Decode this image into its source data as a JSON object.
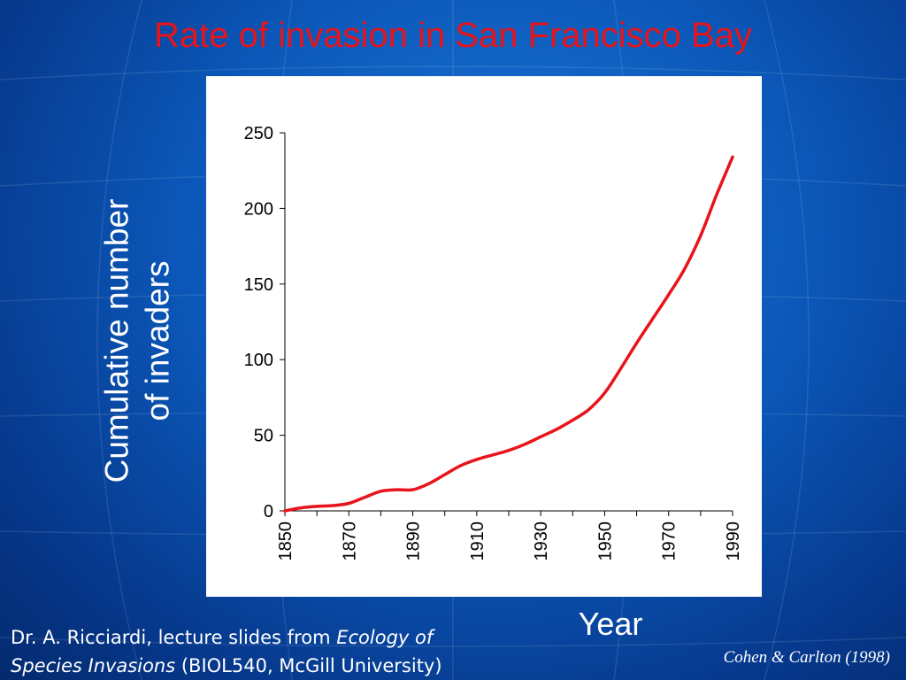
{
  "slide": {
    "title": "Rate of invasion in San Francisco Bay",
    "ylabel_line1": "Cumulative number",
    "ylabel_line2": "of invaders",
    "xlabel": "Year",
    "footer": {
      "part1": "Dr. A. Ricciardi, lecture slides from ",
      "part2_italic": "Ecology of",
      "part3_italic": "Species Invasions",
      "part4": " (BIOL540, McGill University)"
    },
    "citation": "Cohen & Carlton (1998)"
  },
  "colors": {
    "title": "#e8141b",
    "line": "#e8141b",
    "background": "#0b57b8"
  },
  "chart_data": {
    "type": "line",
    "title": "Rate of invasion in San Francisco Bay",
    "xlabel": "Year",
    "ylabel": "Cumulative number of invaders",
    "x_ticks": [
      "1850",
      "1870",
      "1890",
      "1910",
      "1930",
      "1950",
      "1970",
      "1990"
    ],
    "y_ticks": [
      "0",
      "50",
      "100",
      "150",
      "200",
      "250"
    ],
    "xlim": [
      1850,
      1990
    ],
    "ylim": [
      0,
      250
    ],
    "grid": false,
    "series": [
      {
        "x": [
          1850,
          1855,
          1860,
          1865,
          1870,
          1875,
          1880,
          1885,
          1890,
          1895,
          1900,
          1905,
          1910,
          1915,
          1920,
          1925,
          1930,
          1935,
          1940,
          1945,
          1950,
          1955,
          1960,
          1965,
          1970,
          1975,
          1980,
          1985,
          1990
        ],
        "y": [
          0,
          2,
          3,
          3.5,
          5,
          9,
          13,
          14,
          14,
          18,
          24,
          30,
          34,
          37,
          40,
          44,
          49,
          54,
          60,
          67,
          78,
          94,
          111,
          127,
          143,
          160,
          182,
          209,
          234
        ]
      }
    ]
  }
}
